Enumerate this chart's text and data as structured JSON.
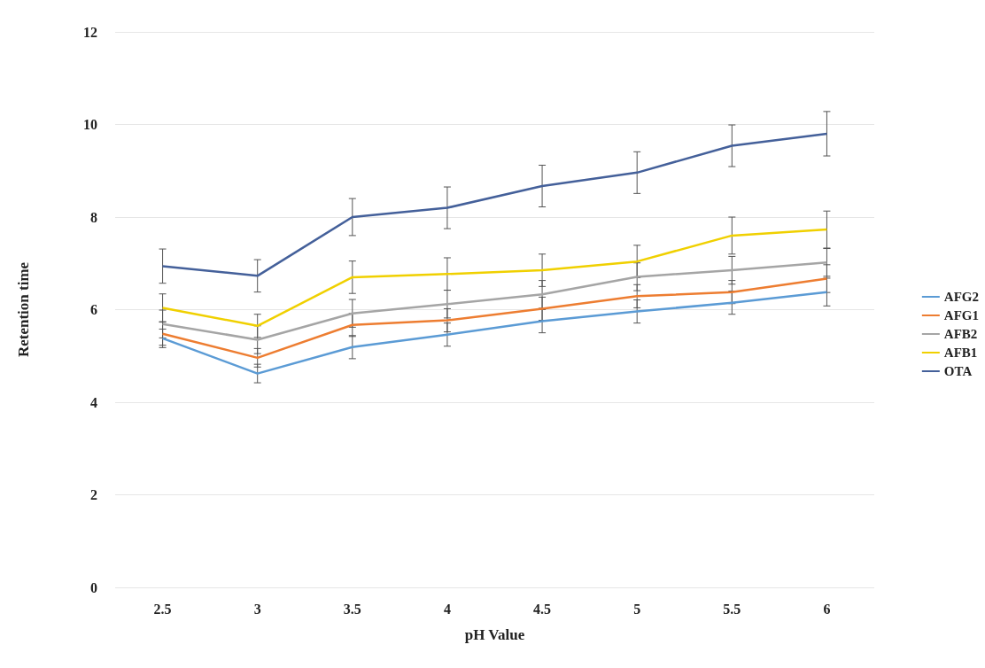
{
  "chart_data": {
    "type": "line",
    "xlabel": "pH Value",
    "ylabel": "Retention time",
    "categories": [
      "2.5",
      "3",
      "3.5",
      "4",
      "4.5",
      "5",
      "5.5",
      "6"
    ],
    "series": [
      {
        "name": "AFG2",
        "color": "#5b9bd5",
        "values": [
          5.38,
          4.62,
          5.19,
          5.46,
          5.75,
          5.96,
          6.15,
          6.38
        ],
        "errors": [
          0.2,
          0.2,
          0.25,
          0.25,
          0.25,
          0.25,
          0.25,
          0.3
        ]
      },
      {
        "name": "AFG1",
        "color": "#ed7d31",
        "values": [
          5.48,
          4.96,
          5.67,
          5.77,
          6.02,
          6.29,
          6.38,
          6.67
        ],
        "errors": [
          0.25,
          0.2,
          0.25,
          0.25,
          0.25,
          0.25,
          0.25,
          0.3
        ]
      },
      {
        "name": "AFB2",
        "color": "#a5a5a5",
        "values": [
          5.69,
          5.35,
          5.92,
          6.12,
          6.33,
          6.71,
          6.85,
          7.02
        ],
        "errors": [
          0.3,
          0.3,
          0.3,
          0.3,
          0.3,
          0.3,
          0.3,
          0.3
        ]
      },
      {
        "name": "AFB1",
        "color": "#f0d000",
        "values": [
          6.04,
          5.65,
          6.7,
          6.77,
          6.85,
          7.04,
          7.6,
          7.73
        ],
        "errors": [
          0.3,
          0.25,
          0.35,
          0.35,
          0.35,
          0.35,
          0.4,
          0.4
        ]
      },
      {
        "name": "OTA",
        "color": "#44609a",
        "values": [
          6.94,
          6.73,
          8.0,
          8.2,
          8.67,
          8.96,
          9.54,
          9.8
        ],
        "errors": [
          0.37,
          0.35,
          0.4,
          0.45,
          0.45,
          0.45,
          0.45,
          0.48
        ]
      }
    ],
    "ylim": [
      0,
      12
    ],
    "yticks": [
      0,
      2,
      4,
      6,
      8,
      10,
      12
    ],
    "grid": "y",
    "legend": "right",
    "marker": "none",
    "line_style": "solid"
  }
}
